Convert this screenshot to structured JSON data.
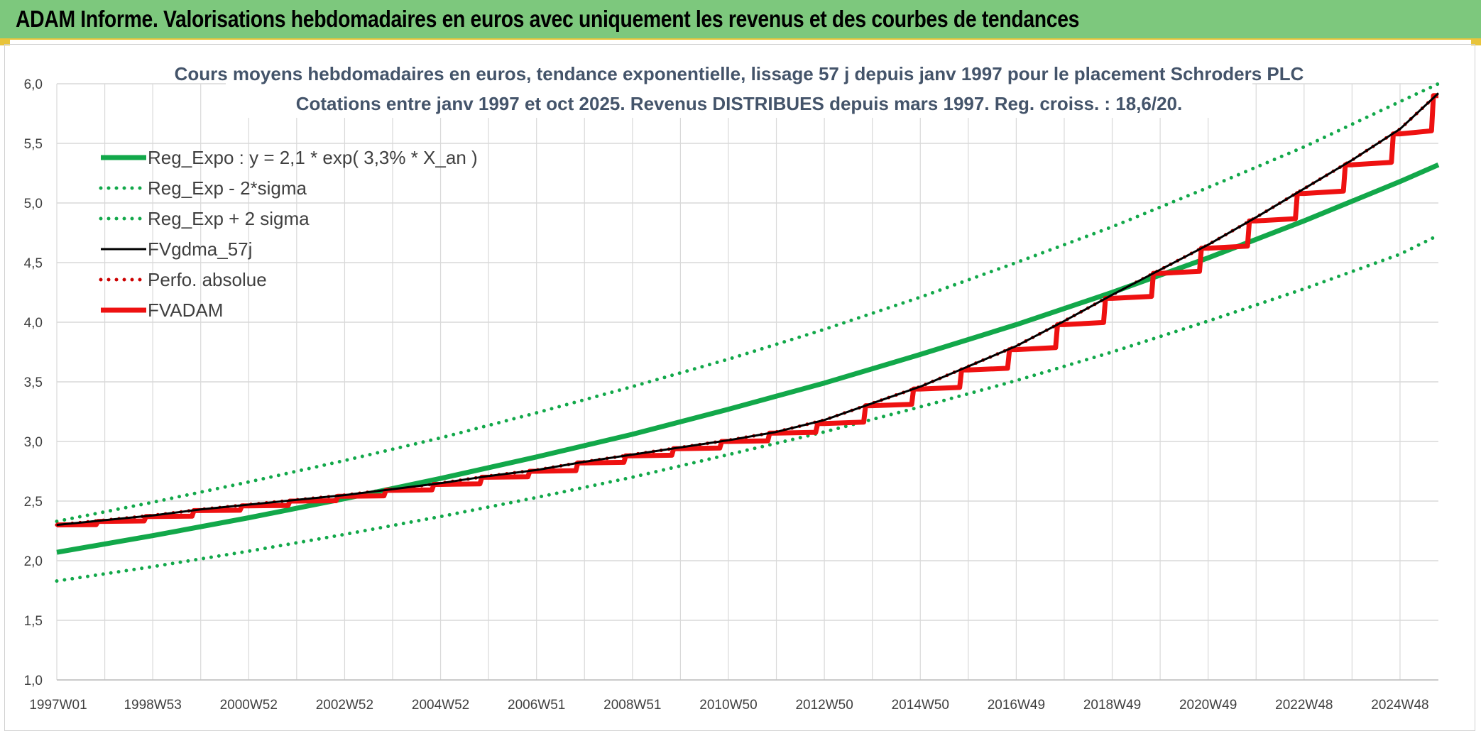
{
  "banner": {
    "title": "ADAM Informe. Valorisations hebdomadaires en euros avec uniquement les revenus et des courbes de tendances"
  },
  "colors": {
    "banner_bg": "#7dc87d",
    "banner_accent": "#e8c43a",
    "trend": "#12a84a",
    "fvgdma": "#000000",
    "fvadam": "#ee1111",
    "perfo": "#cc0000",
    "grid": "#d9d9d9"
  },
  "chart_data": {
    "type": "line",
    "title": "Cours moyens hebdomadaires en euros, tendance exponentielle, lissage 57 j depuis janv 1997 pour le placement Schroders PLC",
    "subtitle": "Cotations entre janv 1997 et oct 2025. Revenus DISTRIBUES depuis mars 1997. Reg. croiss. : 18,6/20.",
    "xlabel": "",
    "ylabel": "",
    "x_range": [
      1997.0,
      2025.8
    ],
    "ylim": [
      1.0,
      6.0
    ],
    "yticks": [
      "1,0",
      "1,5",
      "2,0",
      "2,5",
      "3,0",
      "3,5",
      "4,0",
      "4,5",
      "5,0",
      "5,5",
      "6,0"
    ],
    "xticks": [
      {
        "label": "1997W01",
        "x": 1997.0
      },
      {
        "label": "1998W53",
        "x": 1999.0
      },
      {
        "label": "2000W52",
        "x": 2001.0
      },
      {
        "label": "2002W52",
        "x": 2003.0
      },
      {
        "label": "2004W52",
        "x": 2005.0
      },
      {
        "label": "2006W51",
        "x": 2007.0
      },
      {
        "label": "2008W51",
        "x": 2009.0
      },
      {
        "label": "2010W50",
        "x": 2011.0
      },
      {
        "label": "2012W50",
        "x": 2013.0
      },
      {
        "label": "2014W50",
        "x": 2015.0
      },
      {
        "label": "2016W49",
        "x": 2017.0
      },
      {
        "label": "2018W49",
        "x": 2019.0
      },
      {
        "label": "2020W49",
        "x": 2021.0
      },
      {
        "label": "2022W48",
        "x": 2023.0
      },
      {
        "label": "2024W48",
        "x": 2025.0
      }
    ],
    "grid": true,
    "legend_position": "top-left",
    "series": [
      {
        "name": "Reg_Expo : y = 2,1 * exp( 3,3% *  X_an )",
        "style": "solid-thick",
        "color": "#12a84a",
        "x": [
          1997.0,
          1999.0,
          2001.0,
          2003.0,
          2005.0,
          2007.0,
          2009.0,
          2011.0,
          2013.0,
          2015.0,
          2017.0,
          2019.0,
          2021.0,
          2023.0,
          2025.0,
          2025.8
        ],
        "y": [
          2.07,
          2.21,
          2.36,
          2.52,
          2.69,
          2.87,
          3.06,
          3.27,
          3.49,
          3.73,
          3.98,
          4.25,
          4.54,
          4.85,
          5.18,
          5.32
        ]
      },
      {
        "name": "Reg_Exp - 2*sigma",
        "style": "dotted",
        "color": "#12a84a",
        "x": [
          1997.0,
          1999.0,
          2001.0,
          2003.0,
          2005.0,
          2007.0,
          2009.0,
          2011.0,
          2013.0,
          2015.0,
          2017.0,
          2019.0,
          2021.0,
          2023.0,
          2025.0,
          2025.8
        ],
        "y": [
          1.83,
          1.95,
          2.08,
          2.22,
          2.37,
          2.53,
          2.7,
          2.89,
          3.08,
          3.29,
          3.51,
          3.75,
          4.01,
          4.28,
          4.57,
          4.73
        ]
      },
      {
        "name": "Reg_Exp + 2 sigma",
        "style": "dotted",
        "color": "#12a84a",
        "x": [
          1997.0,
          1999.0,
          2001.0,
          2003.0,
          2005.0,
          2007.0,
          2009.0,
          2011.0,
          2013.0,
          2015.0,
          2017.0,
          2019.0,
          2021.0,
          2023.0,
          2025.0,
          2025.8
        ],
        "y": [
          2.33,
          2.49,
          2.66,
          2.84,
          3.03,
          3.24,
          3.46,
          3.69,
          3.94,
          4.21,
          4.5,
          4.8,
          5.13,
          5.47,
          5.85,
          6.0
        ]
      },
      {
        "name": "FVgdma_57j",
        "style": "solid-thin",
        "color": "#000000",
        "x": [
          1997.0,
          1998.0,
          1999.0,
          2000.0,
          2001.0,
          2002.0,
          2003.0,
          2004.0,
          2005.0,
          2006.0,
          2007.0,
          2008.0,
          2009.0,
          2010.0,
          2011.0,
          2012.0,
          2013.0,
          2014.0,
          2015.0,
          2016.0,
          2017.0,
          2018.0,
          2019.0,
          2020.0,
          2021.0,
          2022.0,
          2023.0,
          2024.0,
          2025.0,
          2025.8
        ],
        "y": [
          2.3,
          2.34,
          2.38,
          2.43,
          2.47,
          2.51,
          2.55,
          2.6,
          2.65,
          2.71,
          2.76,
          2.83,
          2.89,
          2.95,
          3.01,
          3.08,
          3.18,
          3.32,
          3.46,
          3.63,
          3.8,
          4.01,
          4.23,
          4.44,
          4.65,
          4.88,
          5.12,
          5.36,
          5.62,
          5.92
        ]
      },
      {
        "name": "Perfo. absolue",
        "style": "dotted",
        "color": "#cc0000",
        "x": [
          1997.0,
          1998.0,
          1999.0,
          2000.0,
          2001.0,
          2002.0,
          2003.0,
          2004.0,
          2005.0,
          2006.0,
          2007.0,
          2008.0,
          2009.0,
          2010.0,
          2011.0,
          2012.0,
          2013.0,
          2014.0,
          2015.0,
          2016.0,
          2017.0,
          2018.0,
          2019.0,
          2020.0,
          2021.0,
          2022.0,
          2023.0,
          2024.0,
          2025.0,
          2025.8
        ],
        "y": [
          2.3,
          2.34,
          2.38,
          2.43,
          2.47,
          2.51,
          2.55,
          2.6,
          2.65,
          2.71,
          2.76,
          2.83,
          2.89,
          2.95,
          3.01,
          3.08,
          3.18,
          3.32,
          3.46,
          3.63,
          3.8,
          4.01,
          4.23,
          4.44,
          4.65,
          4.88,
          5.12,
          5.36,
          5.62,
          5.92
        ]
      },
      {
        "name": "FVADAM",
        "style": "step-thick",
        "color": "#ee1111",
        "x": [
          1997.0,
          1998.0,
          1999.0,
          2000.0,
          2001.0,
          2002.0,
          2003.0,
          2004.0,
          2005.0,
          2006.0,
          2007.0,
          2008.0,
          2009.0,
          2010.0,
          2011.0,
          2012.0,
          2013.0,
          2014.0,
          2015.0,
          2016.0,
          2017.0,
          2018.0,
          2019.0,
          2020.0,
          2021.0,
          2022.0,
          2023.0,
          2024.0,
          2025.0,
          2025.8
        ],
        "y": [
          2.3,
          2.33,
          2.37,
          2.42,
          2.46,
          2.5,
          2.54,
          2.59,
          2.64,
          2.7,
          2.75,
          2.82,
          2.88,
          2.94,
          3.0,
          3.07,
          3.15,
          3.3,
          3.44,
          3.6,
          3.77,
          3.98,
          4.2,
          4.41,
          4.62,
          4.85,
          5.08,
          5.32,
          5.58,
          5.9
        ]
      }
    ]
  }
}
